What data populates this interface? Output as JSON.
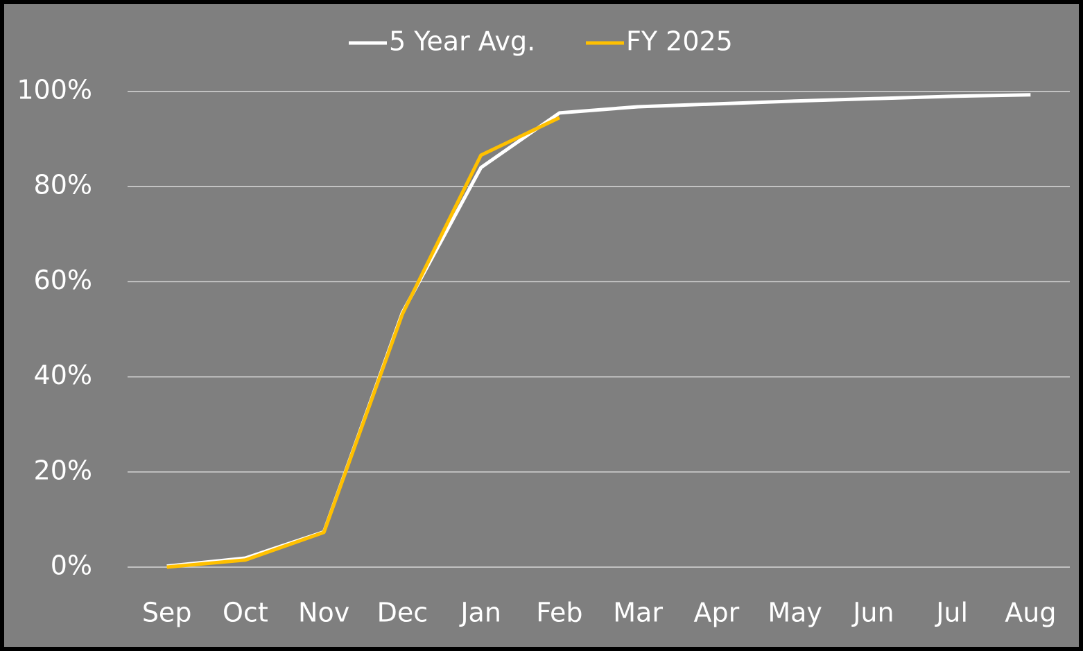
{
  "chart_data": {
    "type": "line",
    "categories": [
      "Sep",
      "Oct",
      "Nov",
      "Dec",
      "Jan",
      "Feb",
      "Mar",
      "Apr",
      "May",
      "Jun",
      "Jul",
      "Aug"
    ],
    "series": [
      {
        "name": "5 Year Avg.",
        "color": "#ffffff",
        "values": [
          0.2,
          1.9,
          7.4,
          53.5,
          84,
          95.5,
          96.8,
          97.4,
          98,
          98.5,
          99,
          99.3
        ]
      },
      {
        "name": "FY 2025",
        "color": "#ffc000",
        "values": [
          0,
          1.5,
          7.3,
          53.2,
          86.6,
          94.5,
          null,
          null,
          null,
          null,
          null,
          null
        ]
      }
    ],
    "ylim": [
      0,
      100
    ],
    "yticks": [
      {
        "value": 0,
        "label": "0%"
      },
      {
        "value": 20,
        "label": "20%"
      },
      {
        "value": 40,
        "label": "40%"
      },
      {
        "value": 60,
        "label": "60%"
      },
      {
        "value": 80,
        "label": "80%"
      },
      {
        "value": 100,
        "label": "100%"
      }
    ],
    "grid": true,
    "legend": "top"
  }
}
